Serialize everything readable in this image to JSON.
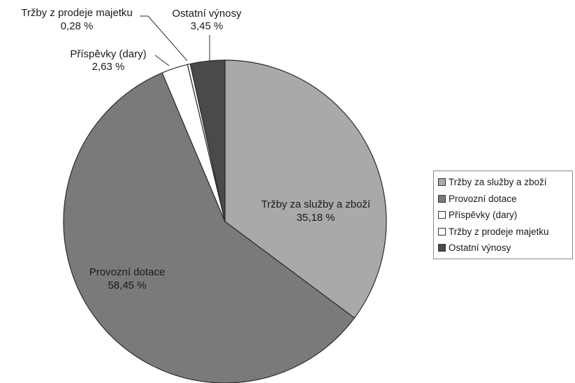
{
  "chart_data": {
    "type": "pie",
    "start_angle_deg": 0,
    "direction": "clockwise",
    "slices": [
      {
        "name": "Tržby za služby a zboží",
        "value": 35.18,
        "value_label": "35,18 %",
        "color": "#a9a9a9"
      },
      {
        "name": "Provozní dotace",
        "value": 58.45,
        "value_label": "58,45 %",
        "color": "#7a7a7a"
      },
      {
        "name": "Příspěvky (dary)",
        "value": 2.63,
        "value_label": "2,63 %",
        "color": "#ffffff"
      },
      {
        "name": "Tržby z prodeje majetku",
        "value": 0.28,
        "value_label": "0,28 %",
        "color": "#ffffff"
      },
      {
        "name": "Ostatní výnosy",
        "value": 3.45,
        "value_label": "3,45 %",
        "color": "#4a4a4a"
      }
    ],
    "legend": {
      "position": "right",
      "items": [
        "Tržby za služby a zboží",
        "Provozní dotace",
        "Příspěvky (dary)",
        "Tržby z prodeje majetku",
        "Ostatní výnosy"
      ]
    }
  }
}
